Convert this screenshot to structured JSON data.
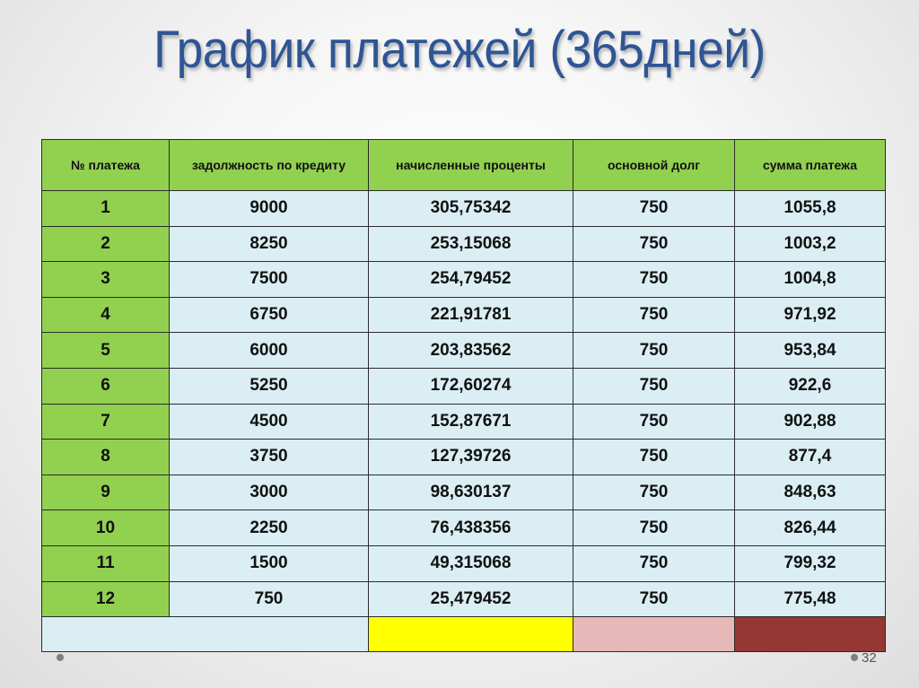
{
  "slide": {
    "title": "График платежей (365дней)",
    "page_number": "32"
  },
  "table": {
    "headers": [
      "№ платежа",
      "задолжность по кредиту",
      "начисленные проценты",
      "основной долг",
      "сумма платежа"
    ],
    "rows": [
      [
        "1",
        "9000",
        "305,75342",
        "750",
        "1055,8"
      ],
      [
        "2",
        "8250",
        "253,15068",
        "750",
        "1003,2"
      ],
      [
        "3",
        "7500",
        "254,79452",
        "750",
        "1004,8"
      ],
      [
        "4",
        "6750",
        "221,91781",
        "750",
        "971,92"
      ],
      [
        "5",
        "6000",
        "203,83562",
        "750",
        "953,84"
      ],
      [
        "6",
        "5250",
        "172,60274",
        "750",
        "922,6"
      ],
      [
        "7",
        "4500",
        "152,87671",
        "750",
        "902,88"
      ],
      [
        "8",
        "3750",
        "127,39726",
        "750",
        "877,4"
      ],
      [
        "9",
        "3000",
        "98,630137",
        "750",
        "848,63"
      ],
      [
        "10",
        "2250",
        "76,438356",
        "750",
        "826,44"
      ],
      [
        "11",
        "1500",
        "49,315068",
        "750",
        "799,32"
      ],
      [
        "12",
        "750",
        "25,479452",
        "750",
        "775,48"
      ]
    ],
    "footer_colors": {
      "blank": "#daeef3",
      "interest_total": "#ffff00",
      "principal_total": "#e6b8b7",
      "payment_total": "#953735"
    }
  },
  "colors": {
    "header_green": "#92d050",
    "cell_light_blue": "#daeef3",
    "title_blue": "#2e5594"
  }
}
